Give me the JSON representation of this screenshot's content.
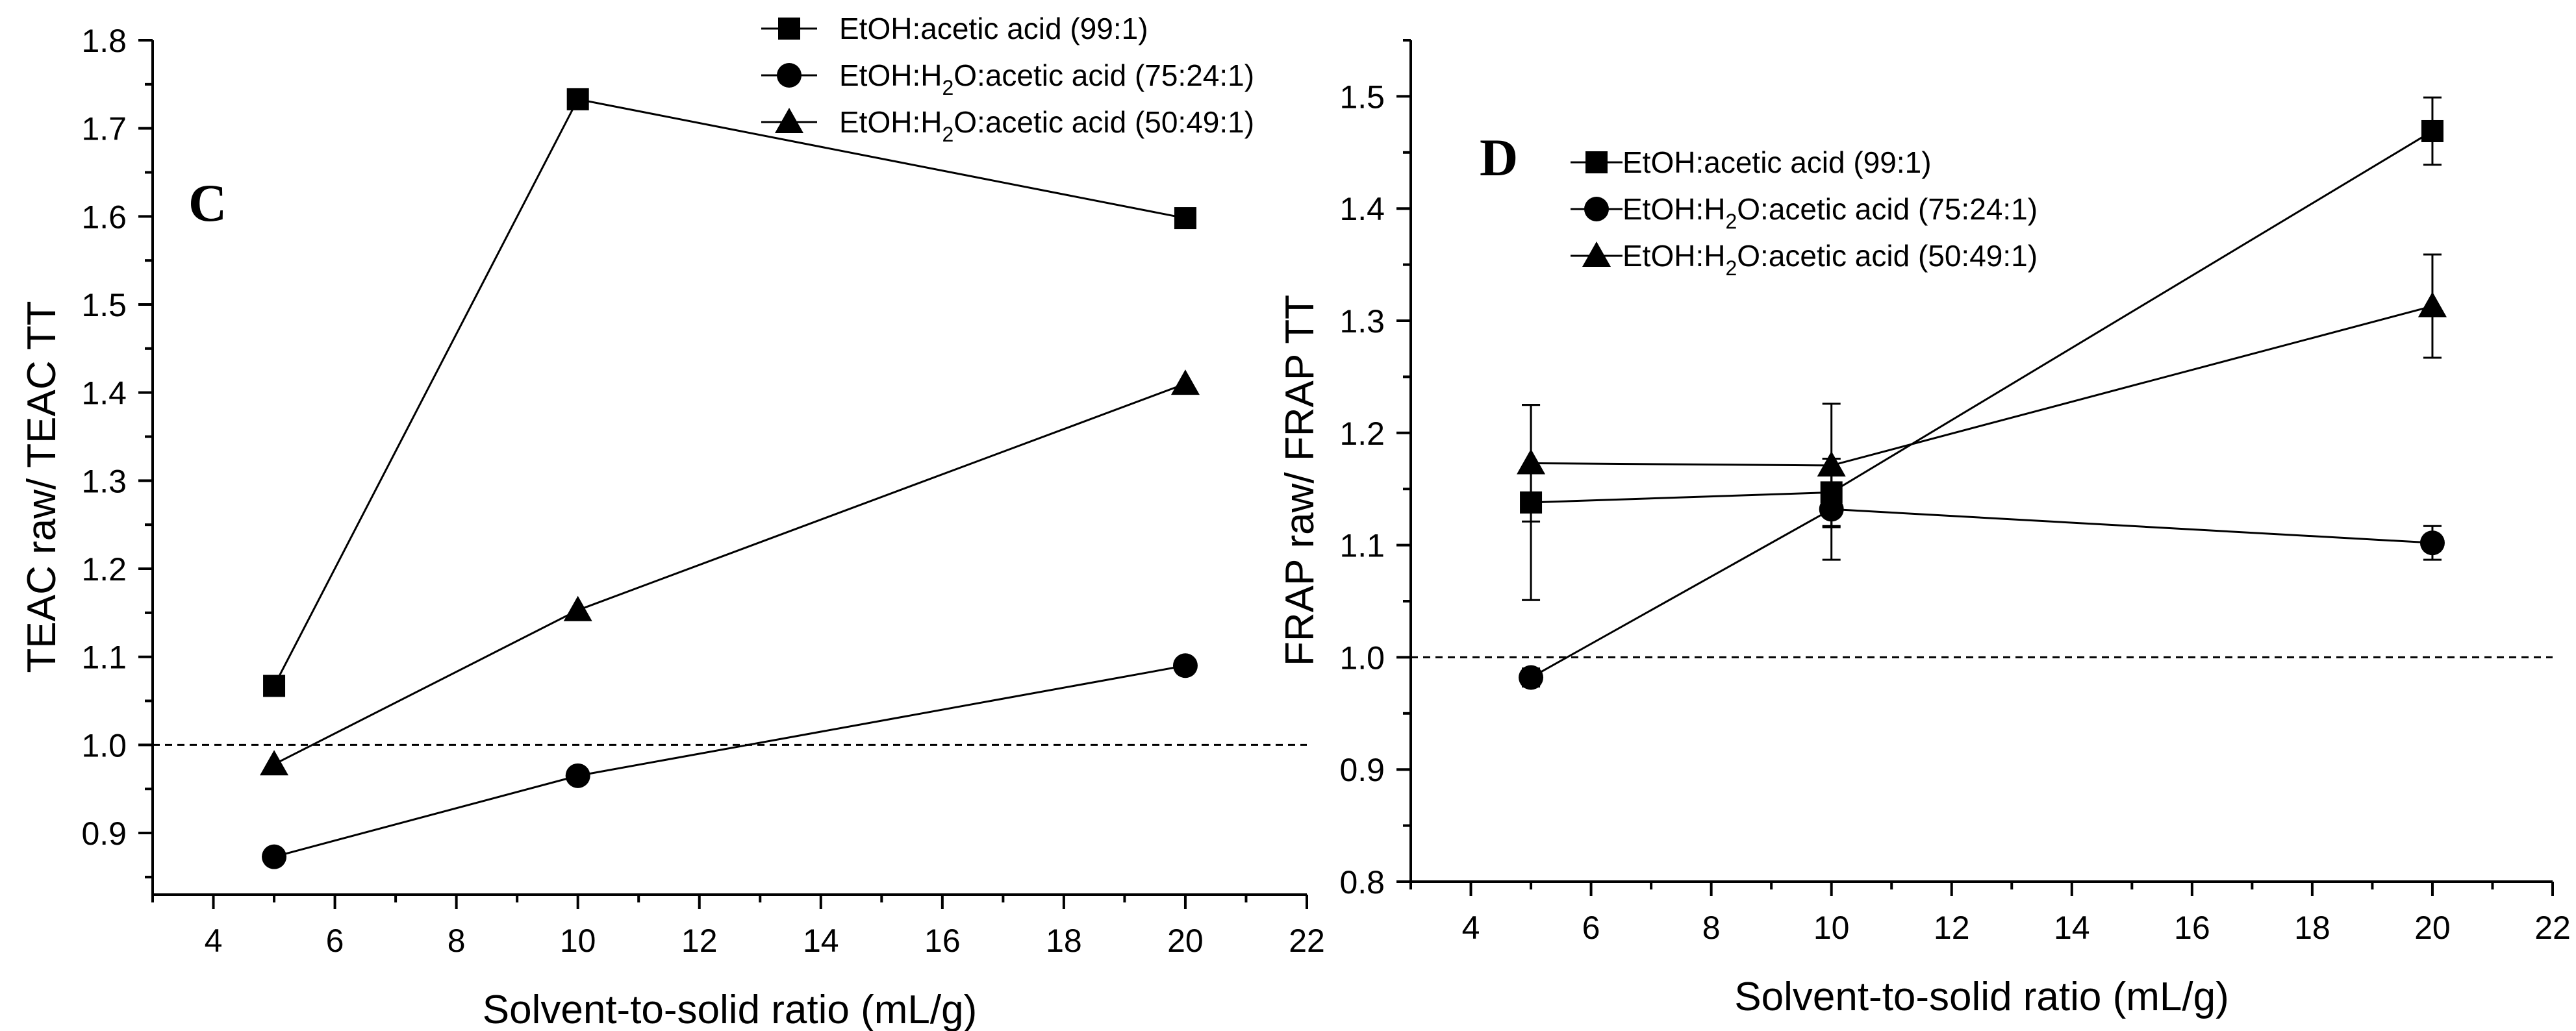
{
  "chart_data": [
    {
      "type": "line",
      "panel": "C",
      "xlabel": "Solvent-to-solid ratio (mL/g)",
      "ylabel": "TEAC raw/ TEAC TT",
      "xlim": [
        3,
        22
      ],
      "ylim": [
        0.83,
        1.8
      ],
      "xticks": [
        4,
        6,
        8,
        10,
        12,
        14,
        16,
        18,
        20,
        22
      ],
      "yticks": [
        0.9,
        1.0,
        1.1,
        1.2,
        1.3,
        1.4,
        1.5,
        1.6,
        1.7,
        1.8
      ],
      "ytick_labels": [
        "0.9",
        "1.0",
        "1.1",
        "1.2",
        "1.3",
        "1.4",
        "1.5",
        "1.6",
        "1.7",
        "1.8"
      ],
      "reference_line": 1.0,
      "legend_position": "top-right",
      "series": [
        {
          "name": "EtOH:acetic acid (99:1)",
          "marker": "square",
          "x": [
            5,
            10,
            20
          ],
          "values": [
            1.067,
            1.733,
            1.598
          ],
          "errors": [
            0,
            0,
            0
          ]
        },
        {
          "name": "EtOH:H2O:acetic acid (75:24:1)",
          "legend_parts": [
            "EtOH:H",
            "2",
            "O:acetic acid (75:24:1)"
          ],
          "marker": "circle",
          "x": [
            5,
            10,
            20
          ],
          "values": [
            0.873,
            0.965,
            1.09
          ],
          "errors": [
            0,
            0,
            0
          ]
        },
        {
          "name": "EtOH:H2O:acetic acid (50:49:1)",
          "legend_parts": [
            "EtOH:H",
            "2",
            "O:acetic acid (50:49:1)"
          ],
          "marker": "triangle",
          "x": [
            5,
            10,
            20
          ],
          "values": [
            0.978,
            1.153,
            1.41
          ],
          "errors": [
            0,
            0,
            0
          ]
        }
      ]
    },
    {
      "type": "line",
      "panel": "D",
      "xlabel": "Solvent-to-solid ratio (mL/g)",
      "ylabel": "FRAP raw/ FRAP TT",
      "xlim": [
        3,
        22
      ],
      "ylim": [
        0.8,
        1.55
      ],
      "xticks": [
        4,
        6,
        8,
        10,
        12,
        14,
        16,
        18,
        20,
        22
      ],
      "yticks": [
        0.8,
        0.9,
        1.0,
        1.1,
        1.2,
        1.3,
        1.4,
        1.5
      ],
      "ytick_labels": [
        "0.8",
        "0.9",
        "1.0",
        "1.1",
        "1.2",
        "1.3",
        "1.4",
        "1.5"
      ],
      "reference_line": 1.0,
      "legend_position": "top-left",
      "series": [
        {
          "name": "EtOH:acetic acid (99:1)",
          "marker": "square",
          "x": [
            5,
            10,
            20
          ],
          "values": [
            1.138,
            1.147,
            1.469
          ],
          "errors": [
            0.087,
            0.03,
            0.03
          ]
        },
        {
          "name": "EtOH:H2O:acetic acid (75:24:1)",
          "legend_parts": [
            "EtOH:H",
            "2",
            "O:acetic acid (75:24:1)"
          ],
          "marker": "circle",
          "x": [
            5,
            10,
            20
          ],
          "values": [
            0.982,
            1.132,
            1.102
          ],
          "errors": [
            0.008,
            0.045,
            0.015
          ]
        },
        {
          "name": "EtOH:H2O:acetic acid (50:49:1)",
          "legend_parts": [
            "EtOH:H",
            "2",
            "O:acetic acid (50:49:1)"
          ],
          "marker": "triangle",
          "x": [
            5,
            10,
            20
          ],
          "values": [
            1.173,
            1.171,
            1.313
          ],
          "errors": [
            0.052,
            0.055,
            0.046
          ]
        }
      ]
    }
  ]
}
